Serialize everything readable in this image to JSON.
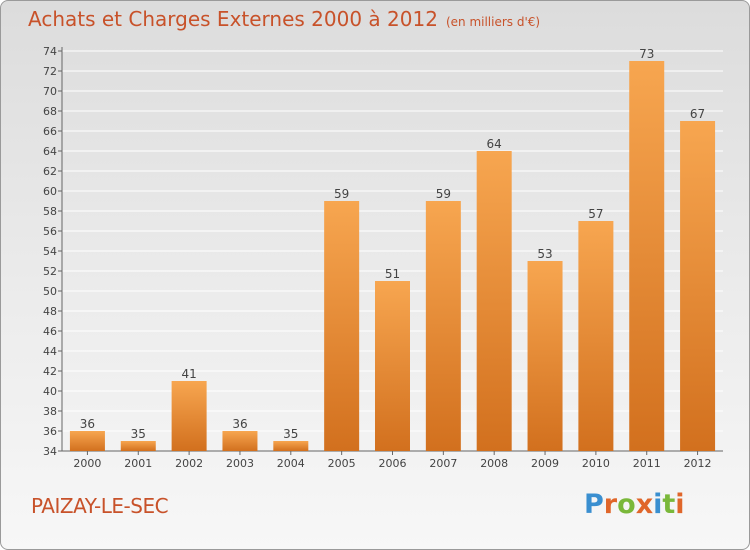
{
  "header": {
    "title": "Achats et Charges Externes 2000 à 2012",
    "units": "(en milliers d'€)"
  },
  "footer": {
    "town": "PAIZAY-LE-SEC",
    "brand": "Proxiti"
  },
  "colors": {
    "bar_light": "#f7a650",
    "bar_dark": "#d2701e",
    "title": "#c8522a",
    "brand_letters": [
      "#3a8fd0",
      "#e0662a",
      "#7ab83a",
      "#e0662a",
      "#3a8fd0",
      "#7ab83a",
      "#e0662a"
    ]
  },
  "chart_data": {
    "type": "bar",
    "categories": [
      "2000",
      "2001",
      "2002",
      "2003",
      "2004",
      "2005",
      "2006",
      "2007",
      "2008",
      "2009",
      "2010",
      "2011",
      "2012"
    ],
    "values": [
      36,
      35,
      41,
      36,
      35,
      59,
      51,
      59,
      64,
      53,
      57,
      73,
      67
    ],
    "title": "Achats et Charges Externes 2000 à 2012",
    "xlabel": "",
    "ylabel": "",
    "ylim": [
      34,
      74
    ],
    "yticks": [
      34,
      36,
      38,
      40,
      42,
      44,
      46,
      48,
      50,
      52,
      54,
      56,
      58,
      60,
      62,
      64,
      66,
      68,
      70,
      72,
      74
    ],
    "grid": "horizontal",
    "data_labels": true
  }
}
